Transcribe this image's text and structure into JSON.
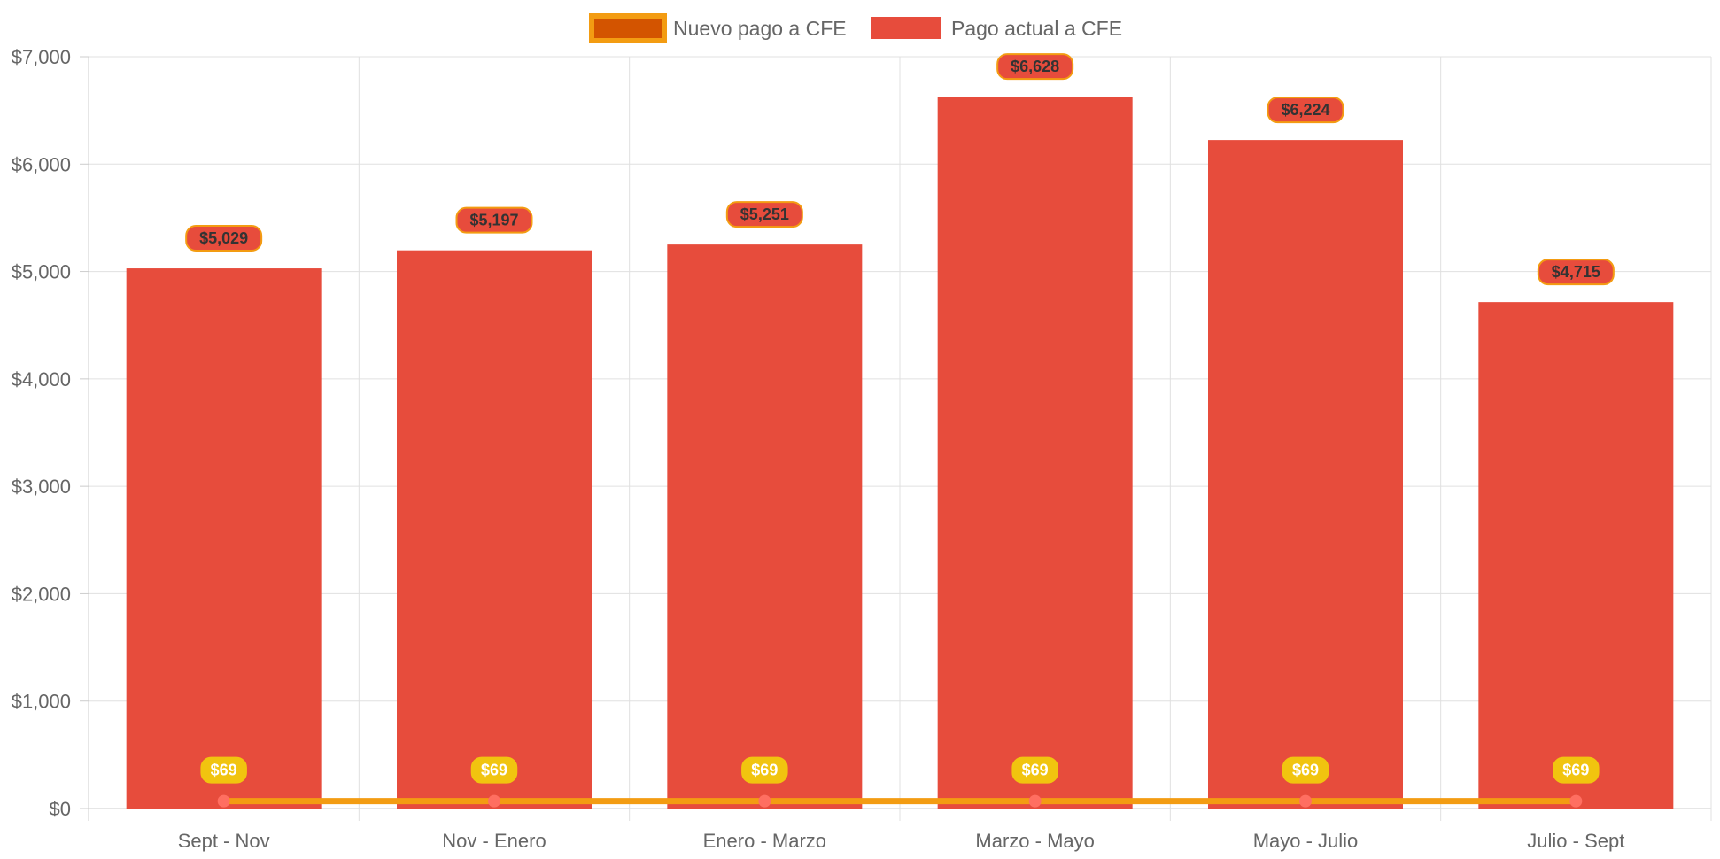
{
  "chart_data": {
    "type": "bar",
    "title": "",
    "xlabel": "",
    "ylabel": "",
    "ylim": [
      0,
      7000
    ],
    "y_step": 1000,
    "grid": true,
    "legend_position": "top-center",
    "categories": [
      "Sept - Nov",
      "Nov - Enero",
      "Enero - Marzo",
      "Marzo - Mayo",
      "Mayo - Julio",
      "Julio - Sept"
    ],
    "y_tick_labels": [
      "$0",
      "$1,000",
      "$2,000",
      "$3,000",
      "$4,000",
      "$5,000",
      "$6,000",
      "$7,000"
    ],
    "series": [
      {
        "name": "Nuevo pago a CFE",
        "type": "line",
        "values": [
          69,
          69,
          69,
          69,
          69,
          69
        ],
        "labels": [
          "$69",
          "$69",
          "$69",
          "$69",
          "$69",
          "$69"
        ],
        "line_color": "#f39c12",
        "legend_fill": "#d35400",
        "point_color": "#ff6f61",
        "label_bg": "#f1c40f"
      },
      {
        "name": "Pago actual a CFE",
        "type": "bar",
        "values": [
          5029,
          5197,
          5251,
          6628,
          6224,
          4715
        ],
        "labels": [
          "$5,029",
          "$5,197",
          "$5,251",
          "$6,628",
          "$6,224",
          "$4,715"
        ],
        "color": "#e74c3c",
        "label_border": "#f39c12"
      }
    ],
    "colors": {
      "grid": "#e0e0e0",
      "axis": "#cccccc",
      "text": "#666666"
    }
  }
}
